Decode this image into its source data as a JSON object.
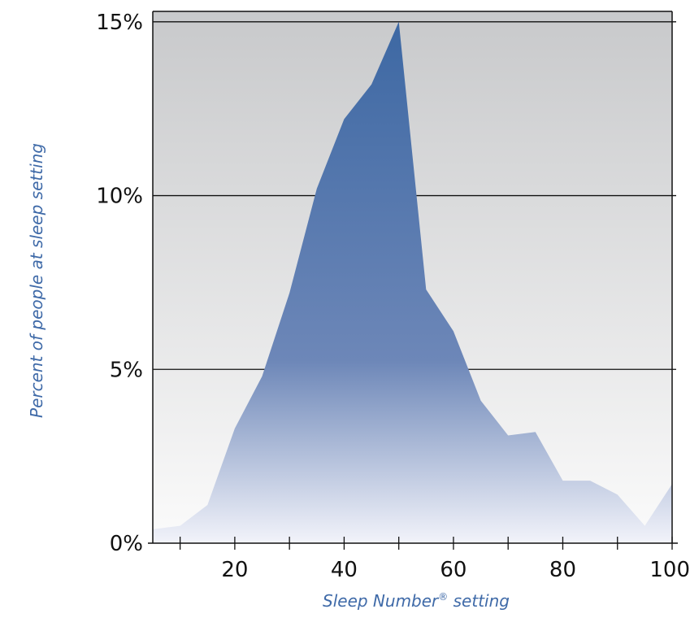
{
  "chart_data": {
    "type": "area",
    "title": "",
    "xlabel": "Sleep Number",
    "xlabel_mark": "®",
    "xlabel_suffix": " setting",
    "ylabel": "Percent of people at sleep setting",
    "xlim": [
      5,
      100
    ],
    "ylim": [
      0,
      15.3
    ],
    "x_ticks": [
      10,
      20,
      30,
      40,
      50,
      60,
      70,
      80,
      90,
      100
    ],
    "x_tick_labels": [
      {
        "value": 20,
        "label": "20"
      },
      {
        "value": 40,
        "label": "40"
      },
      {
        "value": 60,
        "label": "60"
      },
      {
        "value": 80,
        "label": "80"
      },
      {
        "value": 100,
        "label": "100"
      }
    ],
    "y_ticks": [
      {
        "value": 0,
        "label": "0%"
      },
      {
        "value": 5,
        "label": "5%"
      },
      {
        "value": 10,
        "label": "10%"
      },
      {
        "value": 15,
        "label": "15%"
      }
    ],
    "grid": true,
    "legend": "none",
    "series": [
      {
        "x": [
          5,
          10,
          15,
          20,
          25,
          30,
          35,
          40,
          45,
          50,
          55,
          60,
          65,
          70,
          75,
          80,
          85,
          90,
          95,
          100
        ],
        "values": [
          0.4,
          0.5,
          1.1,
          3.3,
          4.8,
          7.2,
          10.2,
          12.2,
          13.2,
          15.0,
          7.3,
          6.1,
          4.1,
          3.1,
          3.2,
          1.8,
          1.8,
          1.4,
          0.5,
          1.7
        ]
      }
    ],
    "colors": {
      "fill_top": "#3d68a3",
      "fill_mid": "#6d87b8",
      "fill_bottom": "#f2f3fa",
      "plot_bg_top": "#c8c9cb",
      "plot_bg_bottom": "#fbfbfb",
      "axis_label": "#3f6aa8"
    }
  }
}
